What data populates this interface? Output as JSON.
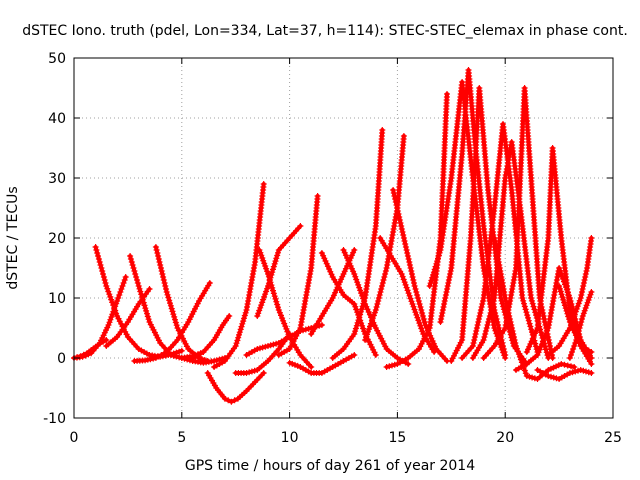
{
  "chart_data": {
    "type": "line",
    "title": "dSTEC Iono. truth (pdel, Lon=334, Lat=37, h=114): STEC-STEC_elemax in phase cont.",
    "xlabel": "GPS time / hours of day 261 of year 2014",
    "ylabel": "dSTEC  / TECUs",
    "xlim": [
      0,
      25
    ],
    "ylim": [
      -10,
      50
    ],
    "xticks": [
      0,
      5,
      10,
      15,
      20,
      25
    ],
    "yticks": [
      -10,
      0,
      10,
      20,
      30,
      40,
      50
    ],
    "grid": true,
    "legend": "none",
    "series_color": "#ff0000",
    "marker": "plus",
    "series": [
      {
        "x": [
          0.0,
          0.3,
          0.6,
          0.9,
          1.2,
          1.5
        ],
        "y": [
          0.0,
          0.3,
          0.8,
          1.6,
          2.4,
          3.0
        ]
      },
      {
        "x": [
          0.0,
          0.4,
          0.8,
          1.2,
          1.6,
          2.0,
          2.2,
          2.4
        ],
        "y": [
          0.0,
          0.2,
          0.8,
          2.5,
          5.5,
          9.5,
          11.5,
          13.5
        ]
      },
      {
        "x": [
          1.0,
          1.5,
          2.0,
          2.5,
          3.0,
          3.5,
          4.0,
          4.5,
          5.0
        ],
        "y": [
          18.5,
          12.0,
          7.0,
          3.5,
          1.5,
          0.5,
          0.2,
          0.6,
          1.2
        ]
      },
      {
        "x": [
          1.5,
          2.0,
          2.5,
          3.0,
          3.5
        ],
        "y": [
          2.0,
          3.5,
          6.0,
          9.0,
          11.5
        ]
      },
      {
        "x": [
          2.6,
          3.0,
          3.5,
          4.0,
          4.5,
          5.0,
          5.5,
          6.0
        ],
        "y": [
          17.0,
          12.0,
          6.0,
          2.5,
          0.5,
          0.0,
          0.3,
          1.0
        ]
      },
      {
        "x": [
          2.8,
          3.3,
          3.8,
          4.3,
          4.8,
          5.3,
          5.8,
          6.3
        ],
        "y": [
          -0.5,
          -0.4,
          0.0,
          1.0,
          3.0,
          6.0,
          9.5,
          12.5
        ]
      },
      {
        "x": [
          3.8,
          4.3,
          4.8,
          5.3,
          5.8,
          6.2
        ],
        "y": [
          18.5,
          11.0,
          5.0,
          1.5,
          0.0,
          -0.5
        ]
      },
      {
        "x": [
          4.5,
          5.0,
          5.5,
          6.0,
          6.5,
          7.0
        ],
        "y": [
          0.5,
          0.0,
          -0.5,
          -0.8,
          -0.5,
          0.0
        ]
      },
      {
        "x": [
          5.5,
          6.0,
          6.5,
          6.9,
          7.2
        ],
        "y": [
          0.0,
          1.0,
          3.0,
          5.5,
          7.0
        ]
      },
      {
        "x": [
          6.2,
          6.6,
          7.0,
          7.3,
          7.6,
          8.0,
          8.4,
          8.8
        ],
        "y": [
          -2.5,
          -5.0,
          -6.8,
          -7.3,
          -6.8,
          -5.5,
          -4.0,
          -2.5
        ]
      },
      {
        "x": [
          6.5,
          7.0,
          7.5,
          8.0,
          8.4,
          8.8
        ],
        "y": [
          -1.5,
          -0.5,
          2.0,
          8.0,
          16.0,
          29.0
        ]
      },
      {
        "x": [
          7.5,
          8.0,
          8.5,
          9.0,
          9.5,
          10.0
        ],
        "y": [
          -2.5,
          -2.5,
          -2.0,
          -0.5,
          1.5,
          4.0
        ]
      },
      {
        "x": [
          8.5,
          9.0,
          9.5,
          10.0,
          10.5
        ],
        "y": [
          7.0,
          12.0,
          18.0,
          20.0,
          22.0
        ]
      },
      {
        "x": [
          8.6,
          9.0,
          9.5,
          10.0,
          10.5,
          11.0
        ],
        "y": [
          18.0,
          14.0,
          8.0,
          3.5,
          0.5,
          -1.5
        ]
      },
      {
        "x": [
          8.0,
          8.5,
          9.0,
          9.5,
          10.0,
          10.5,
          11.0,
          11.5
        ],
        "y": [
          0.5,
          1.5,
          2.0,
          2.5,
          3.5,
          4.5,
          5.0,
          5.5
        ]
      },
      {
        "x": [
          9.5,
          10.0,
          10.5,
          11.0,
          11.3
        ],
        "y": [
          0.5,
          1.5,
          5.0,
          15.0,
          27.0
        ]
      },
      {
        "x": [
          10.0,
          10.5,
          11.0,
          11.5,
          12.0,
          12.5,
          13.0
        ],
        "y": [
          -0.8,
          -1.5,
          -2.5,
          -2.5,
          -1.5,
          -0.5,
          0.5
        ]
      },
      {
        "x": [
          11.0,
          11.5,
          12.0,
          12.5,
          13.0
        ],
        "y": [
          4.0,
          7.0,
          10.0,
          14.0,
          18.0
        ]
      },
      {
        "x": [
          11.5,
          12.0,
          12.5,
          13.0,
          13.5,
          14.0
        ],
        "y": [
          17.5,
          13.5,
          10.5,
          9.0,
          4.0,
          0.5
        ]
      },
      {
        "x": [
          12.5,
          13.0,
          13.5,
          14.0,
          14.5,
          15.0,
          15.5
        ],
        "y": [
          18.0,
          14.0,
          9.0,
          5.0,
          1.5,
          0.0,
          -1.0
        ]
      },
      {
        "x": [
          12.0,
          12.5,
          13.0,
          13.5,
          14.0,
          14.3
        ],
        "y": [
          0.0,
          1.5,
          4.0,
          10.0,
          22.0,
          38.0
        ]
      },
      {
        "x": [
          13.5,
          14.0,
          14.5,
          15.0,
          15.3
        ],
        "y": [
          3.0,
          8.0,
          15.0,
          25.0,
          37.0
        ]
      },
      {
        "x": [
          14.2,
          14.7,
          15.2,
          15.7,
          16.2,
          16.7
        ],
        "y": [
          20.0,
          17.0,
          14.0,
          9.0,
          4.0,
          1.0
        ]
      },
      {
        "x": [
          14.8,
          15.3,
          15.8,
          16.3,
          16.8,
          17.3
        ],
        "y": [
          28.0,
          20.0,
          12.0,
          5.5,
          1.5,
          -0.5
        ]
      },
      {
        "x": [
          14.5,
          15.0,
          15.5,
          16.0,
          16.5,
          17.0,
          17.3
        ],
        "y": [
          -1.5,
          -1.0,
          0.0,
          1.5,
          5.0,
          20.0,
          44.0
        ]
      },
      {
        "x": [
          16.5,
          17.0,
          17.5,
          18.0,
          18.5,
          19.0,
          19.5,
          20.0
        ],
        "y": [
          12.0,
          18.0,
          30.0,
          46.0,
          30.0,
          15.0,
          5.0,
          0.0
        ]
      },
      {
        "x": [
          17.0,
          17.5,
          18.0,
          18.3,
          18.6,
          19.0,
          19.5,
          20.0
        ],
        "y": [
          6.0,
          15.0,
          34.0,
          48.0,
          36.0,
          22.0,
          8.0,
          0.5
        ]
      },
      {
        "x": [
          17.5,
          18.0,
          18.4,
          18.8,
          19.2,
          19.8,
          20.4,
          21.0
        ],
        "y": [
          -0.5,
          3.0,
          20.0,
          45.0,
          28.0,
          10.0,
          2.0,
          -1.0
        ]
      },
      {
        "x": [
          18.0,
          18.5,
          19.0,
          19.5,
          19.9,
          20.3,
          20.8,
          21.5
        ],
        "y": [
          0.0,
          2.0,
          10.0,
          25.0,
          39.0,
          28.0,
          10.0,
          1.0
        ]
      },
      {
        "x": [
          18.5,
          19.0,
          19.5,
          20.0,
          20.3,
          20.7,
          21.2,
          22.0
        ],
        "y": [
          0.0,
          3.0,
          10.0,
          30.0,
          36.0,
          25.0,
          10.0,
          0.0
        ]
      },
      {
        "x": [
          19.0,
          19.5,
          20.0,
          20.5,
          20.9,
          21.2,
          21.6,
          22.2
        ],
        "y": [
          0.0,
          2.0,
          5.0,
          15.0,
          45.0,
          30.0,
          10.0,
          0.0
        ]
      },
      {
        "x": [
          19.5,
          20.0,
          20.5,
          21.0,
          21.5,
          22.0,
          22.6,
          23.2
        ],
        "y": [
          20.0,
          10.0,
          2.0,
          -3.0,
          -3.5,
          -2.0,
          -1.0,
          -1.5
        ]
      },
      {
        "x": [
          20.5,
          21.0,
          21.5,
          22.0,
          22.5,
          23.0,
          23.5,
          24.0
        ],
        "y": [
          -2.0,
          -1.0,
          0.5,
          5.0,
          15.0,
          10.0,
          3.0,
          0.0
        ]
      },
      {
        "x": [
          21.0,
          21.5,
          22.0,
          22.2,
          22.6,
          23.0,
          23.5,
          24.0
        ],
        "y": [
          1.0,
          5.0,
          20.0,
          35.0,
          20.0,
          8.0,
          2.0,
          -1.0
        ]
      },
      {
        "x": [
          21.5,
          22.0,
          22.5,
          23.0,
          23.5,
          24.0
        ],
        "y": [
          -2.0,
          -3.0,
          -3.5,
          -2.5,
          -2.0,
          -2.5
        ]
      },
      {
        "x": [
          22.0,
          22.5,
          23.0,
          23.5,
          23.8,
          24.0
        ],
        "y": [
          0.5,
          2.0,
          5.0,
          10.0,
          15.0,
          20.0
        ]
      },
      {
        "x": [
          22.5,
          23.0,
          23.5,
          24.0
        ],
        "y": [
          12.0,
          6.0,
          2.0,
          1.0
        ]
      },
      {
        "x": [
          23.0,
          23.3,
          23.6,
          24.0
        ],
        "y": [
          0.0,
          3.0,
          7.0,
          11.0
        ]
      }
    ]
  }
}
